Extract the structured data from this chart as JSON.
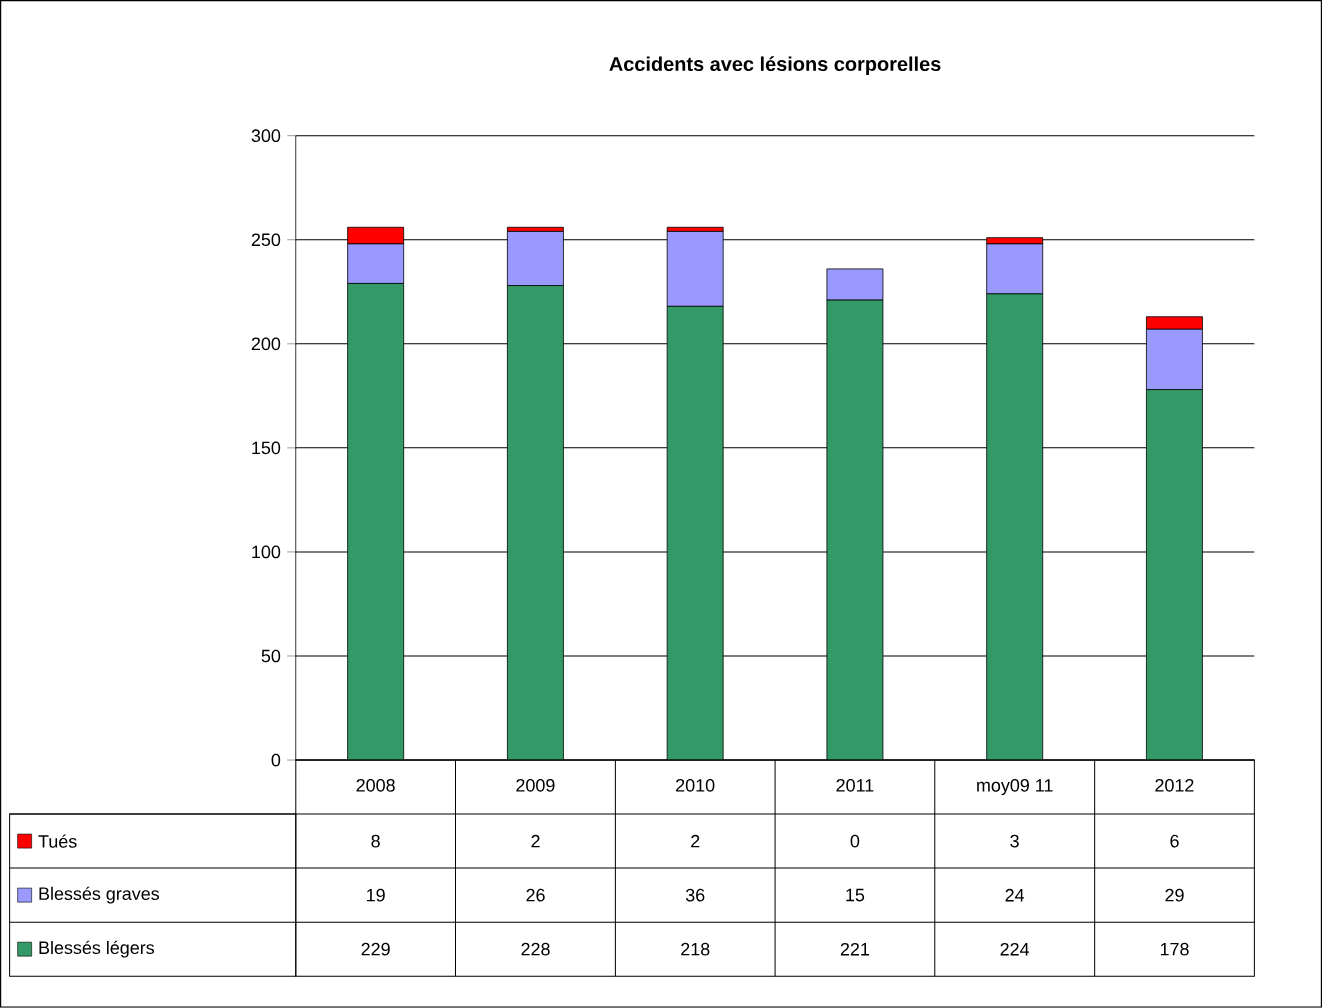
{
  "chart_data": {
    "type": "bar",
    "title": "Accidents avec lésions corporelles",
    "categories": [
      "2008",
      "2009",
      "2010",
      "2011",
      "moy09 11",
      "2012"
    ],
    "stacked": true,
    "series": [
      {
        "name": "Blessés légers",
        "color": "#339966",
        "values": [
          229,
          228,
          218,
          221,
          224,
          178
        ]
      },
      {
        "name": "Blessés graves",
        "color": "#9999ff",
        "values": [
          19,
          26,
          36,
          15,
          24,
          29
        ]
      },
      {
        "name": "Tués",
        "color": "#ff0000",
        "values": [
          8,
          2,
          2,
          0,
          3,
          6
        ]
      }
    ],
    "ylim": [
      0,
      300
    ],
    "yticks": [
      0,
      50,
      100,
      150,
      200,
      250,
      300
    ],
    "grid": "y",
    "legend": "bottom",
    "data_labels": true
  }
}
